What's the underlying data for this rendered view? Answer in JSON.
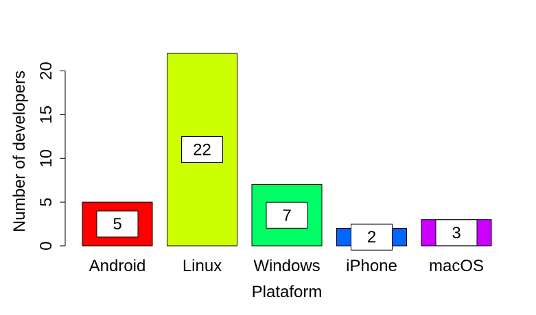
{
  "chart_data": {
    "type": "bar",
    "title": "",
    "xlabel": "Plataform",
    "ylabel": "Number of developers",
    "categories": [
      "Android",
      "Linux",
      "Windows",
      "iPhone",
      "macOS"
    ],
    "values": [
      5,
      22,
      7,
      2,
      3
    ],
    "colors": [
      "#ff0000",
      "#ccff00",
      "#00ff66",
      "#0066ff",
      "#cc00ff"
    ],
    "yticks": [
      0,
      5,
      10,
      15,
      20
    ],
    "ylim": [
      0,
      22
    ],
    "grid": false,
    "legend": "none"
  }
}
